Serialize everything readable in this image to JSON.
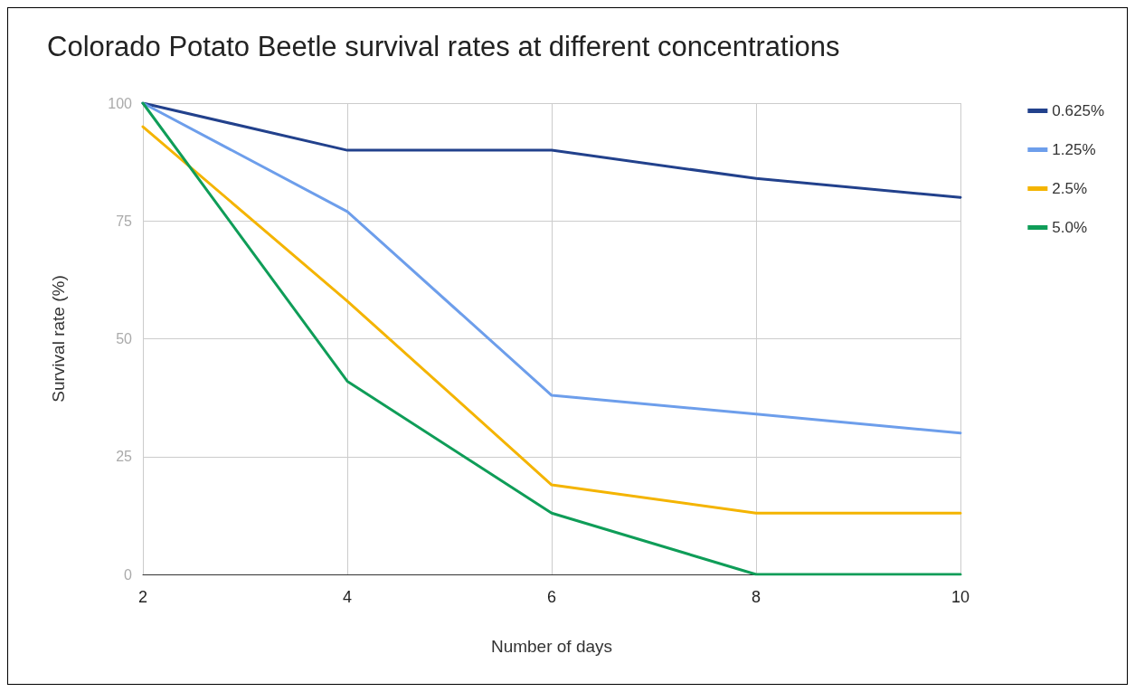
{
  "chart_data": {
    "type": "line",
    "title": "Colorado Potato Beetle survival rates at different concentrations",
    "xlabel": "Number of days",
    "ylabel": "Survival rate (%)",
    "x": [
      2,
      4,
      6,
      8,
      10
    ],
    "xlim": [
      2,
      10
    ],
    "xticks": [
      2,
      4,
      6,
      8,
      10
    ],
    "ylim": [
      0,
      100
    ],
    "yticks": [
      0,
      25,
      50,
      75,
      100
    ],
    "grid": true,
    "legend": "right",
    "marker": "none",
    "line_style": "solid",
    "series": [
      {
        "name": "0.625%",
        "color": "#22418c",
        "values": [
          100,
          90,
          90,
          84,
          80
        ]
      },
      {
        "name": "1.25%",
        "color": "#6d9eeb",
        "values": [
          100,
          77,
          38,
          34,
          30
        ]
      },
      {
        "name": "2.5%",
        "color": "#f4b400",
        "values": [
          95,
          58,
          19,
          13,
          13
        ]
      },
      {
        "name": "5.0%",
        "color": "#0f9d58",
        "values": [
          100,
          41,
          13,
          0,
          0
        ]
      }
    ]
  }
}
